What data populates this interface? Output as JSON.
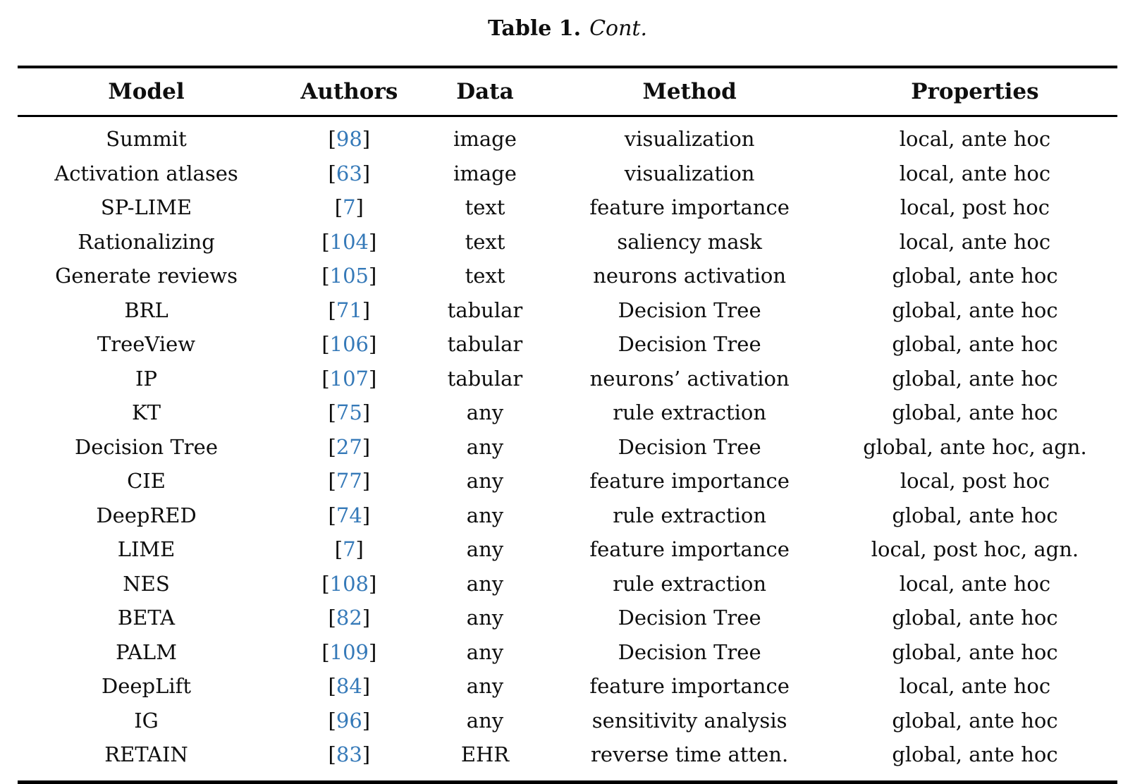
{
  "caption": {
    "label": "Table 1.",
    "cont": "Cont."
  },
  "colors": {
    "text": "#0e0e0e",
    "citation_link": "#3579b8",
    "rule": "#000000"
  },
  "citation_brackets": {
    "open": "[",
    "close": "]"
  },
  "table": {
    "columns": [
      "Model",
      "Authors",
      "Data",
      "Method",
      "Properties"
    ],
    "rows": [
      {
        "model": "Summit",
        "ref": "98",
        "data": "image",
        "method": "visualization",
        "properties": "local, ante hoc"
      },
      {
        "model": "Activation atlases",
        "ref": "63",
        "data": "image",
        "method": "visualization",
        "properties": "local, ante hoc"
      },
      {
        "model": "SP-LIME",
        "ref": "7",
        "data": "text",
        "method": "feature importance",
        "properties": "local, post hoc"
      },
      {
        "model": "Rationalizing",
        "ref": "104",
        "data": "text",
        "method": "saliency mask",
        "properties": "local, ante hoc"
      },
      {
        "model": "Generate reviews",
        "ref": "105",
        "data": "text",
        "method": "neurons activation",
        "properties": "global, ante hoc"
      },
      {
        "model": "BRL",
        "ref": "71",
        "data": "tabular",
        "method": "Decision Tree",
        "properties": "global, ante hoc"
      },
      {
        "model": "TreeView",
        "ref": "106",
        "data": "tabular",
        "method": "Decision Tree",
        "properties": "global, ante hoc"
      },
      {
        "model": "IP",
        "ref": "107",
        "data": "tabular",
        "method": "neurons’ activation",
        "properties": "global, ante hoc"
      },
      {
        "model": "KT",
        "ref": "75",
        "data": "any",
        "method": "rule extraction",
        "properties": "global, ante hoc"
      },
      {
        "model": "Decision Tree",
        "ref": "27",
        "data": "any",
        "method": "Decision Tree",
        "properties": "global, ante hoc, agn."
      },
      {
        "model": "CIE",
        "ref": "77",
        "data": "any",
        "method": "feature importance",
        "properties": "local, post hoc"
      },
      {
        "model": "DeepRED",
        "ref": "74",
        "data": "any",
        "method": "rule extraction",
        "properties": "global, ante hoc"
      },
      {
        "model": "LIME",
        "ref": "7",
        "data": "any",
        "method": "feature importance",
        "properties": "local, post hoc, agn."
      },
      {
        "model": "NES",
        "ref": "108",
        "data": "any",
        "method": "rule extraction",
        "properties": "local, ante hoc"
      },
      {
        "model": "BETA",
        "ref": "82",
        "data": "any",
        "method": "Decision Tree",
        "properties": "global, ante hoc"
      },
      {
        "model": "PALM",
        "ref": "109",
        "data": "any",
        "method": "Decision Tree",
        "properties": "global, ante hoc"
      },
      {
        "model": "DeepLift",
        "ref": "84",
        "data": "any",
        "method": "feature importance",
        "properties": "local, ante hoc"
      },
      {
        "model": "IG",
        "ref": "96",
        "data": "any",
        "method": "sensitivity analysis",
        "properties": "global, ante hoc"
      },
      {
        "model": "RETAIN",
        "ref": "83",
        "data": "EHR",
        "method": "reverse time atten.",
        "properties": "global, ante hoc"
      }
    ]
  }
}
